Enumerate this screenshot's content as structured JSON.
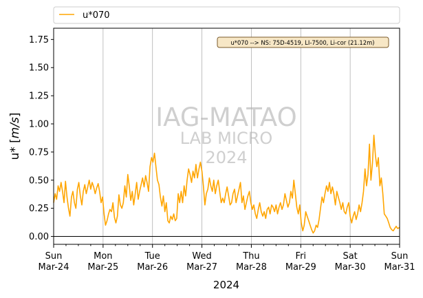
{
  "chart_data": {
    "type": "line",
    "title": "",
    "xlabel": "2024",
    "ylabel": "u* [m/s]",
    "ylabel_main": "u* [",
    "ylabel_unit": "m/s",
    "ylabel_close": "]",
    "ylim": [
      -0.07,
      1.85
    ],
    "yticks": [
      "0.00",
      "0.25",
      "0.50",
      "0.75",
      "1.00",
      "1.25",
      "1.50",
      "1.75"
    ],
    "yticks_values": [
      0,
      0.25,
      0.5,
      0.75,
      1.0,
      1.25,
      1.5,
      1.75
    ],
    "x_range_days": [
      0,
      7
    ],
    "xtick_days": [
      0,
      1,
      2,
      3,
      4,
      5,
      6,
      7
    ],
    "xticks": [
      {
        "day": "Sun",
        "date": "Mar-24"
      },
      {
        "day": "Mon",
        "date": "Mar-25"
      },
      {
        "day": "Tue",
        "date": "Mar-26"
      },
      {
        "day": "Wed",
        "date": "Mar-27"
      },
      {
        "day": "Thu",
        "date": "Mar-28"
      },
      {
        "day": "Fri",
        "date": "Mar-29"
      },
      {
        "day": "Sat",
        "date": "Mar-30"
      },
      {
        "day": "Sun",
        "date": "Mar-31"
      }
    ],
    "grid": "vertical at day ticks",
    "legend_position": "above plot",
    "annotation": "u*070 --> NS: 75D-4519, LI-7500, Li-cor (21.12m)",
    "watermark": [
      "IAG-MATAO",
      "LAB MICRO",
      "2024"
    ],
    "series": [
      {
        "name": "u*070",
        "color": "#FFA500",
        "points": [
          [
            0.0,
            0.3
          ],
          [
            0.03,
            0.38
          ],
          [
            0.06,
            0.33
          ],
          [
            0.09,
            0.45
          ],
          [
            0.12,
            0.4
          ],
          [
            0.15,
            0.48
          ],
          [
            0.18,
            0.4
          ],
          [
            0.21,
            0.3
          ],
          [
            0.24,
            0.49
          ],
          [
            0.27,
            0.35
          ],
          [
            0.3,
            0.25
          ],
          [
            0.33,
            0.18
          ],
          [
            0.36,
            0.35
          ],
          [
            0.39,
            0.4
          ],
          [
            0.42,
            0.3
          ],
          [
            0.45,
            0.25
          ],
          [
            0.48,
            0.42
          ],
          [
            0.51,
            0.48
          ],
          [
            0.54,
            0.36
          ],
          [
            0.57,
            0.28
          ],
          [
            0.6,
            0.4
          ],
          [
            0.63,
            0.46
          ],
          [
            0.66,
            0.38
          ],
          [
            0.69,
            0.44
          ],
          [
            0.72,
            0.5
          ],
          [
            0.75,
            0.42
          ],
          [
            0.78,
            0.48
          ],
          [
            0.81,
            0.44
          ],
          [
            0.84,
            0.38
          ],
          [
            0.87,
            0.43
          ],
          [
            0.9,
            0.47
          ],
          [
            0.93,
            0.4
          ],
          [
            0.96,
            0.3
          ],
          [
            0.99,
            0.35
          ],
          [
            1.02,
            0.2
          ],
          [
            1.05,
            0.1
          ],
          [
            1.08,
            0.14
          ],
          [
            1.11,
            0.2
          ],
          [
            1.14,
            0.24
          ],
          [
            1.17,
            0.22
          ],
          [
            1.2,
            0.3
          ],
          [
            1.23,
            0.17
          ],
          [
            1.26,
            0.12
          ],
          [
            1.29,
            0.18
          ],
          [
            1.32,
            0.37
          ],
          [
            1.35,
            0.28
          ],
          [
            1.38,
            0.25
          ],
          [
            1.41,
            0.3
          ],
          [
            1.44,
            0.45
          ],
          [
            1.47,
            0.35
          ],
          [
            1.5,
            0.55
          ],
          [
            1.53,
            0.45
          ],
          [
            1.56,
            0.32
          ],
          [
            1.59,
            0.4
          ],
          [
            1.62,
            0.28
          ],
          [
            1.65,
            0.38
          ],
          [
            1.68,
            0.48
          ],
          [
            1.71,
            0.33
          ],
          [
            1.74,
            0.4
          ],
          [
            1.77,
            0.46
          ],
          [
            1.8,
            0.52
          ],
          [
            1.83,
            0.44
          ],
          [
            1.86,
            0.54
          ],
          [
            1.89,
            0.48
          ],
          [
            1.92,
            0.4
          ],
          [
            1.95,
            0.62
          ],
          [
            1.98,
            0.7
          ],
          [
            2.01,
            0.66
          ],
          [
            2.04,
            0.74
          ],
          [
            2.07,
            0.62
          ],
          [
            2.1,
            0.5
          ],
          [
            2.13,
            0.46
          ],
          [
            2.16,
            0.35
          ],
          [
            2.19,
            0.27
          ],
          [
            2.22,
            0.36
          ],
          [
            2.25,
            0.22
          ],
          [
            2.28,
            0.3
          ],
          [
            2.31,
            0.14
          ],
          [
            2.34,
            0.12
          ],
          [
            2.37,
            0.18
          ],
          [
            2.4,
            0.15
          ],
          [
            2.43,
            0.2
          ],
          [
            2.46,
            0.14
          ],
          [
            2.49,
            0.16
          ],
          [
            2.52,
            0.38
          ],
          [
            2.55,
            0.3
          ],
          [
            2.58,
            0.4
          ],
          [
            2.61,
            0.3
          ],
          [
            2.64,
            0.45
          ],
          [
            2.67,
            0.36
          ],
          [
            2.7,
            0.5
          ],
          [
            2.73,
            0.6
          ],
          [
            2.76,
            0.55
          ],
          [
            2.79,
            0.48
          ],
          [
            2.82,
            0.58
          ],
          [
            2.85,
            0.52
          ],
          [
            2.88,
            0.64
          ],
          [
            2.91,
            0.52
          ],
          [
            2.94,
            0.6
          ],
          [
            2.97,
            0.66
          ],
          [
            3.0,
            0.58
          ],
          [
            3.03,
            0.45
          ],
          [
            3.06,
            0.28
          ],
          [
            3.09,
            0.38
          ],
          [
            3.12,
            0.42
          ],
          [
            3.15,
            0.52
          ],
          [
            3.18,
            0.45
          ],
          [
            3.21,
            0.4
          ],
          [
            3.24,
            0.5
          ],
          [
            3.27,
            0.38
          ],
          [
            3.3,
            0.45
          ],
          [
            3.33,
            0.5
          ],
          [
            3.36,
            0.4
          ],
          [
            3.39,
            0.3
          ],
          [
            3.42,
            0.34
          ],
          [
            3.45,
            0.3
          ],
          [
            3.48,
            0.38
          ],
          [
            3.51,
            0.44
          ],
          [
            3.54,
            0.36
          ],
          [
            3.57,
            0.28
          ],
          [
            3.6,
            0.3
          ],
          [
            3.63,
            0.38
          ],
          [
            3.66,
            0.42
          ],
          [
            3.69,
            0.3
          ],
          [
            3.72,
            0.36
          ],
          [
            3.75,
            0.42
          ],
          [
            3.78,
            0.48
          ],
          [
            3.81,
            0.3
          ],
          [
            3.84,
            0.36
          ],
          [
            3.87,
            0.24
          ],
          [
            3.9,
            0.3
          ],
          [
            3.93,
            0.36
          ],
          [
            3.96,
            0.4
          ],
          [
            3.99,
            0.3
          ],
          [
            4.02,
            0.24
          ],
          [
            4.05,
            0.28
          ],
          [
            4.08,
            0.2
          ],
          [
            4.11,
            0.16
          ],
          [
            4.14,
            0.24
          ],
          [
            4.17,
            0.3
          ],
          [
            4.2,
            0.22
          ],
          [
            4.23,
            0.18
          ],
          [
            4.26,
            0.22
          ],
          [
            4.29,
            0.16
          ],
          [
            4.32,
            0.24
          ],
          [
            4.35,
            0.26
          ],
          [
            4.38,
            0.2
          ],
          [
            4.41,
            0.28
          ],
          [
            4.44,
            0.26
          ],
          [
            4.47,
            0.22
          ],
          [
            4.5,
            0.28
          ],
          [
            4.53,
            0.2
          ],
          [
            4.56,
            0.26
          ],
          [
            4.59,
            0.3
          ],
          [
            4.62,
            0.24
          ],
          [
            4.65,
            0.28
          ],
          [
            4.68,
            0.38
          ],
          [
            4.71,
            0.32
          ],
          [
            4.74,
            0.26
          ],
          [
            4.77,
            0.3
          ],
          [
            4.8,
            0.4
          ],
          [
            4.83,
            0.34
          ],
          [
            4.86,
            0.5
          ],
          [
            4.89,
            0.38
          ],
          [
            4.92,
            0.26
          ],
          [
            4.95,
            0.2
          ],
          [
            4.98,
            0.28
          ],
          [
            5.01,
            0.12
          ],
          [
            5.04,
            0.05
          ],
          [
            5.07,
            0.1
          ],
          [
            5.1,
            0.22
          ],
          [
            5.13,
            0.18
          ],
          [
            5.16,
            0.14
          ],
          [
            5.19,
            0.1
          ],
          [
            5.22,
            0.06
          ],
          [
            5.25,
            0.03
          ],
          [
            5.28,
            0.05
          ],
          [
            5.31,
            0.1
          ],
          [
            5.34,
            0.08
          ],
          [
            5.37,
            0.15
          ],
          [
            5.4,
            0.25
          ],
          [
            5.43,
            0.35
          ],
          [
            5.46,
            0.3
          ],
          [
            5.49,
            0.38
          ],
          [
            5.52,
            0.45
          ],
          [
            5.55,
            0.4
          ],
          [
            5.58,
            0.48
          ],
          [
            5.61,
            0.38
          ],
          [
            5.64,
            0.44
          ],
          [
            5.67,
            0.38
          ],
          [
            5.7,
            0.28
          ],
          [
            5.73,
            0.4
          ],
          [
            5.76,
            0.35
          ],
          [
            5.79,
            0.3
          ],
          [
            5.82,
            0.24
          ],
          [
            5.85,
            0.3
          ],
          [
            5.88,
            0.22
          ],
          [
            5.91,
            0.2
          ],
          [
            5.94,
            0.26
          ],
          [
            5.97,
            0.3
          ],
          [
            6.0,
            0.18
          ],
          [
            6.03,
            0.12
          ],
          [
            6.06,
            0.18
          ],
          [
            6.09,
            0.22
          ],
          [
            6.12,
            0.15
          ],
          [
            6.15,
            0.2
          ],
          [
            6.18,
            0.28
          ],
          [
            6.21,
            0.22
          ],
          [
            6.24,
            0.3
          ],
          [
            6.27,
            0.4
          ],
          [
            6.3,
            0.6
          ],
          [
            6.33,
            0.45
          ],
          [
            6.36,
            0.55
          ],
          [
            6.39,
            0.82
          ],
          [
            6.42,
            0.5
          ],
          [
            6.45,
            0.65
          ],
          [
            6.48,
            0.9
          ],
          [
            6.51,
            0.72
          ],
          [
            6.54,
            0.62
          ],
          [
            6.57,
            0.7
          ],
          [
            6.6,
            0.45
          ],
          [
            6.63,
            0.52
          ],
          [
            6.66,
            0.38
          ],
          [
            6.69,
            0.2
          ],
          [
            6.72,
            0.18
          ],
          [
            6.75,
            0.16
          ],
          [
            6.78,
            0.12
          ],
          [
            6.81,
            0.08
          ],
          [
            6.84,
            0.06
          ],
          [
            6.87,
            0.05
          ],
          [
            6.9,
            0.07
          ],
          [
            6.93,
            0.09
          ],
          [
            6.96,
            0.07
          ],
          [
            7.0,
            0.08
          ]
        ]
      }
    ]
  }
}
